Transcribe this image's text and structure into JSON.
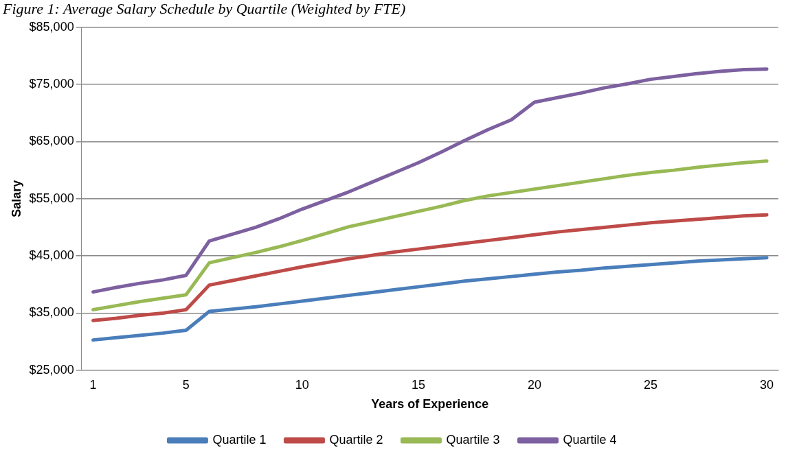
{
  "chart_data": {
    "type": "line",
    "title": "Figure 1: Average Salary Schedule by Quartile (Weighted by FTE)",
    "xlabel": "Years of Experience",
    "ylabel": "Salary",
    "x": [
      1,
      2,
      3,
      4,
      5,
      6,
      7,
      8,
      9,
      10,
      11,
      12,
      13,
      14,
      15,
      16,
      17,
      18,
      19,
      20,
      21,
      22,
      23,
      24,
      25,
      26,
      27,
      28,
      29,
      30
    ],
    "xlim": [
      0.5,
      30.5
    ],
    "xticks": [
      1,
      5,
      10,
      15,
      20,
      25,
      30
    ],
    "ylim": [
      25000,
      85000
    ],
    "yticks": [
      {
        "value": 25000,
        "label": "$25,000"
      },
      {
        "value": 35000,
        "label": "$35,000"
      },
      {
        "value": 45000,
        "label": "$45,000"
      },
      {
        "value": 55000,
        "label": "$55,000"
      },
      {
        "value": 65000,
        "label": "$65,000"
      },
      {
        "value": 75000,
        "label": "$75,000"
      },
      {
        "value": 85000,
        "label": "$85,000"
      }
    ],
    "grid": "y",
    "legend": "bottom",
    "marker": "none",
    "line_style": "solid",
    "series": [
      {
        "name": "Quartile 1",
        "color": "#4a7ebb",
        "values": [
          30300,
          30700,
          31100,
          31500,
          32000,
          35300,
          35700,
          36100,
          36600,
          37100,
          37600,
          38100,
          38600,
          39100,
          39600,
          40100,
          40600,
          41000,
          41400,
          41800,
          42200,
          42500,
          42900,
          43200,
          43500,
          43800,
          44100,
          44300,
          44500,
          44700
        ]
      },
      {
        "name": "Quartile 2",
        "color": "#be4b48",
        "values": [
          33700,
          34100,
          34600,
          35000,
          35600,
          39900,
          40700,
          41500,
          42300,
          43100,
          43800,
          44500,
          45100,
          45700,
          46200,
          46700,
          47200,
          47700,
          48200,
          48700,
          49200,
          49600,
          50000,
          50400,
          50800,
          51100,
          51400,
          51700,
          52000,
          52200
        ]
      },
      {
        "name": "Quartile 3",
        "color": "#98b954",
        "values": [
          35600,
          36300,
          37000,
          37600,
          38200,
          43800,
          44700,
          45600,
          46600,
          47700,
          48900,
          50100,
          51000,
          51900,
          52800,
          53700,
          54700,
          55500,
          56100,
          56700,
          57300,
          57900,
          58500,
          59100,
          59600,
          60000,
          60500,
          60900,
          61300,
          61600
        ]
      },
      {
        "name": "Quartile 4",
        "color": "#7d60a0",
        "values": [
          38700,
          39500,
          40200,
          40800,
          41600,
          47600,
          48800,
          50000,
          51500,
          53200,
          54700,
          56200,
          57900,
          59600,
          61300,
          63200,
          65200,
          67100,
          68800,
          71900,
          72700,
          73500,
          74400,
          75100,
          75900,
          76400,
          76900,
          77300,
          77600,
          77700
        ]
      }
    ]
  }
}
